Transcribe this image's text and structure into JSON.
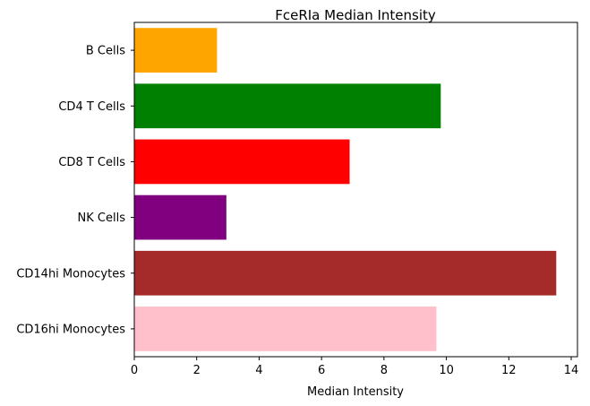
{
  "chart_data": {
    "type": "bar",
    "orientation": "horizontal",
    "title": "FceRIa Median Intensity",
    "xlabel": "Median Intensity",
    "ylabel": "",
    "xlim": [
      0,
      14.2
    ],
    "xticks": [
      0,
      2,
      4,
      6,
      8,
      10,
      12,
      14
    ],
    "categories": [
      "B Cells",
      "CD4 T Cells",
      "CD8 T Cells",
      "NK Cells",
      "CD14hi Monocytes",
      "CD16hi Monocytes"
    ],
    "values": [
      2.65,
      9.82,
      6.9,
      2.95,
      13.52,
      9.68
    ],
    "colors": [
      "#ffa500",
      "#008000",
      "#ff0000",
      "#800080",
      "#a52a2a",
      "#ffc0cb"
    ],
    "grid": false,
    "legend": "none"
  }
}
